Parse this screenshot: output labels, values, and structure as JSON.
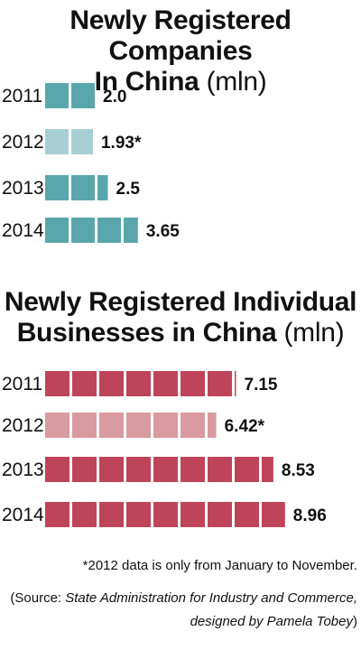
{
  "chart_data": [
    {
      "type": "bar",
      "title": "Newly Registered Companies In China",
      "title_line1": "Newly Registered Companies",
      "title_line2": "In China",
      "unit": "(mln)",
      "categories": [
        "2011",
        "2012",
        "2013",
        "2014"
      ],
      "values": [
        2.0,
        1.93,
        2.5,
        3.65
      ],
      "value_labels": [
        "2.0",
        "1.93*",
        "2.5",
        "3.65"
      ],
      "highlight": [
        false,
        true,
        false,
        false
      ],
      "color": "#5aa6ad",
      "highlight_color": "#a7cfd3",
      "orientation": "horizontal",
      "grid": false
    },
    {
      "type": "bar",
      "title": "Newly Registered Individual Businesses in China",
      "title_line1": "Newly Registered Individual",
      "title_line2": "Businesses in China",
      "unit": "(mln)",
      "categories": [
        "2011",
        "2012",
        "2013",
        "2014"
      ],
      "values": [
        7.15,
        6.42,
        8.53,
        8.96
      ],
      "value_labels": [
        "7.15",
        "6.42*",
        "8.53",
        "8.96"
      ],
      "highlight": [
        false,
        true,
        false,
        false
      ],
      "color": "#be4459",
      "highlight_color": "#d99ba0",
      "orientation": "horizontal",
      "grid": false
    }
  ],
  "footnote": "*2012 data is only from January to November.",
  "source": {
    "prefix": "(Source: ",
    "name": "State Administration for Industry and Commerce,",
    "line2": "designed by Pamela Tobey",
    "suffix": ")"
  }
}
